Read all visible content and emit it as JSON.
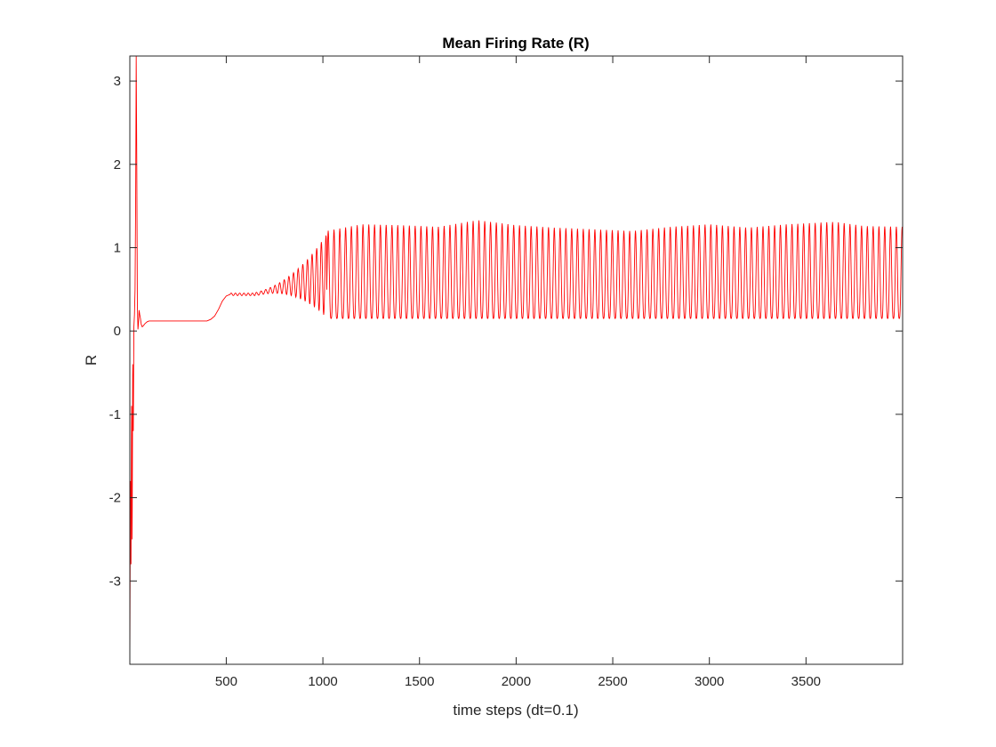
{
  "chart_data": {
    "type": "line",
    "title": "Mean Firing Rate (R)",
    "xlabel": "time steps (dt=0.1)",
    "ylabel": "R",
    "xlim": [
      1,
      4000
    ],
    "ylim": [
      -4,
      3.3
    ],
    "xticks": [
      500,
      1000,
      1500,
      2000,
      2500,
      3000,
      3500
    ],
    "yticks": [
      -3,
      -2,
      -1,
      0,
      1,
      2,
      3
    ],
    "grid": false,
    "legend": "none",
    "series": [
      {
        "color": "#ff0000",
        "segments": [
          {
            "kind": "points",
            "x": [
              1,
              4,
              7,
              10,
              13,
              16,
              19,
              22,
              25,
              28,
              31,
              34,
              37,
              40,
              43,
              46,
              49,
              52,
              56,
              60,
              65,
              70,
              80,
              90,
              100
            ],
            "y": [
              -4.0,
              -1.8,
              -2.8,
              -0.9,
              -2.5,
              -0.4,
              -1.2,
              0.05,
              0.2,
              0.5,
              1.5,
              3.3,
              2.0,
              0.3,
              0.02,
              0.1,
              0.25,
              0.2,
              0.15,
              0.08,
              0.05,
              0.06,
              0.09,
              0.11,
              0.12
            ]
          },
          {
            "kind": "flat",
            "x0": 100,
            "x1": 400,
            "y": 0.12
          },
          {
            "kind": "points",
            "x": [
              400,
              420,
              440,
              460,
              480,
              500,
              520
            ],
            "y": [
              0.12,
              0.14,
              0.18,
              0.26,
              0.36,
              0.42,
              0.44
            ]
          },
          {
            "kind": "oscillation",
            "x0": 520,
            "x1": 650,
            "period": 22,
            "mean": 0.44,
            "amp": 0.015
          },
          {
            "kind": "oscillation",
            "x0": 650,
            "x1": 1020,
            "period": 24,
            "mean_start": 0.44,
            "mean_end": 0.66,
            "amp_start": 0.02,
            "amp_end": 0.5
          },
          {
            "kind": "oscillation",
            "x0": 1020,
            "x1": 4000,
            "period": 30,
            "low": 0.15,
            "high": 1.25,
            "peak_envelope": {
              "x": [
                1020,
                1200,
                1400,
                1600,
                1800,
                2000,
                2200,
                2400,
                2600,
                2800,
                3000,
                3200,
                3400,
                3650,
                3800,
                4000
              ],
              "y": [
                1.2,
                1.28,
                1.27,
                1.25,
                1.33,
                1.27,
                1.24,
                1.22,
                1.2,
                1.25,
                1.28,
                1.24,
                1.28,
                1.31,
                1.26,
                1.25
              ]
            }
          }
        ]
      }
    ]
  }
}
